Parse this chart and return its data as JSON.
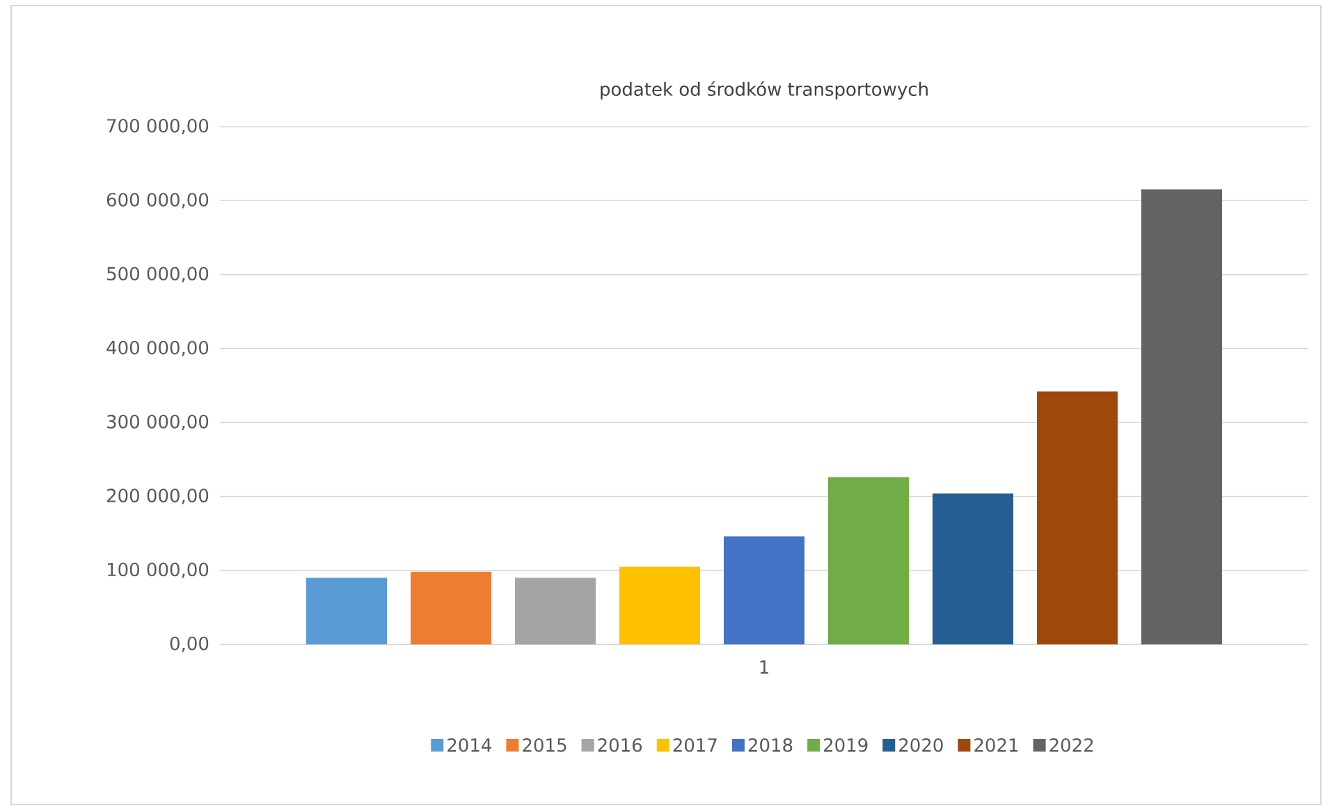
{
  "chart_data": {
    "type": "bar",
    "title": "podatek od środków transportowych",
    "categories": [
      "1"
    ],
    "series": [
      {
        "name": "2014",
        "color": "#5b9bd5",
        "values": [
          90000
        ]
      },
      {
        "name": "2015",
        "color": "#ed7d31",
        "values": [
          98000
        ]
      },
      {
        "name": "2016",
        "color": "#a5a5a5",
        "values": [
          90000
        ]
      },
      {
        "name": "2017",
        "color": "#ffc000",
        "values": [
          105000
        ]
      },
      {
        "name": "2018",
        "color": "#4472c4",
        "values": [
          146000
        ]
      },
      {
        "name": "2019",
        "color": "#70ad47",
        "values": [
          226000
        ]
      },
      {
        "name": "2020",
        "color": "#255e91",
        "values": [
          204000
        ]
      },
      {
        "name": "2021",
        "color": "#9e480e",
        "values": [
          342000
        ]
      },
      {
        "name": "2022",
        "color": "#636363",
        "values": [
          615000
        ]
      }
    ],
    "ylim": [
      0,
      700000
    ],
    "yticks": [
      {
        "value": 0,
        "label": "0,00"
      },
      {
        "value": 100000,
        "label": "100 000,00"
      },
      {
        "value": 200000,
        "label": "200 000,00"
      },
      {
        "value": 300000,
        "label": "300 000,00"
      },
      {
        "value": 400000,
        "label": "400 000,00"
      },
      {
        "value": 500000,
        "label": "500 000,00"
      },
      {
        "value": 600000,
        "label": "600 000,00"
      },
      {
        "value": 700000,
        "label": "700 000,00"
      }
    ],
    "grid": "y",
    "legend": "bottom"
  }
}
